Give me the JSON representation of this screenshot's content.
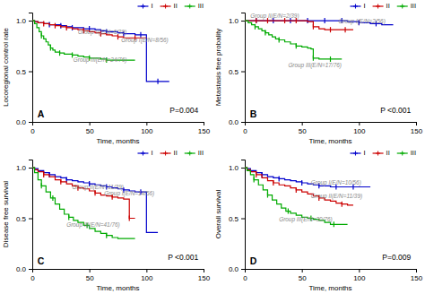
{
  "chart_data": [
    {
      "type": "step",
      "title": "A",
      "subtitle": "P=0.004",
      "xlabel": "Time, months",
      "ylabel": "Locoregional control rate",
      "xlim": [
        0,
        150
      ],
      "ylim": [
        0.0,
        1.08
      ],
      "xticks": [
        0,
        50,
        100,
        150
      ],
      "yticks": [
        {
          "value": 0.0,
          "label": "0.0"
        },
        0.5,
        {
          "value": 1.0,
          "label": "1.0"
        }
      ],
      "grid": false,
      "legend": "upper right",
      "annotations": [
        {
          "text": "Group II(E/N=6/39)",
          "x": 40,
          "y": 0.87,
          "color": "#888888"
        },
        {
          "text": "Group I(E/N=8/56)",
          "x": 78,
          "y": 0.79,
          "color": "#888888"
        },
        {
          "text": "Group III(E/N=24/76)",
          "x": 36,
          "y": 0.595,
          "color": "#888888"
        }
      ],
      "series": [
        {
          "name": "I",
          "color": "#0000cc",
          "x": [
            0,
            2,
            5,
            10,
            15,
            20,
            25,
            30,
            35,
            40,
            45,
            50,
            55,
            60,
            65,
            70,
            75,
            80,
            85,
            90,
            95,
            100,
            105,
            110,
            115,
            120
          ],
          "values": [
            1.0,
            0.99,
            0.98,
            0.97,
            0.96,
            0.96,
            0.95,
            0.94,
            0.93,
            0.93,
            0.92,
            0.92,
            0.91,
            0.9,
            0.89,
            0.89,
            0.88,
            0.87,
            0.87,
            0.86,
            0.86,
            0.4,
            0.4,
            0.4,
            0.4,
            0.4
          ],
          "censors": [
            15,
            25,
            35,
            50,
            65,
            80,
            95,
            110
          ]
        },
        {
          "name": "II",
          "color": "#cc0000",
          "x": [
            0,
            2,
            5,
            10,
            15,
            20,
            25,
            30,
            35,
            40,
            45,
            50,
            55,
            60,
            65,
            70,
            75,
            80,
            85,
            90,
            95,
            100
          ],
          "values": [
            1.0,
            0.99,
            0.98,
            0.97,
            0.96,
            0.95,
            0.94,
            0.93,
            0.92,
            0.91,
            0.9,
            0.89,
            0.88,
            0.87,
            0.86,
            0.85,
            0.84,
            0.83,
            0.83,
            0.83,
            0.83,
            0.83
          ],
          "censors": [
            10,
            20,
            30,
            45,
            60,
            75,
            90
          ]
        },
        {
          "name": "III",
          "color": "#00aa00",
          "x": [
            0,
            2,
            4,
            6,
            8,
            10,
            12,
            14,
            16,
            18,
            20,
            22,
            24,
            26,
            28,
            30,
            35,
            40,
            45,
            50,
            55,
            60,
            65,
            70,
            75,
            80,
            85,
            90
          ],
          "values": [
            1.0,
            0.97,
            0.93,
            0.89,
            0.85,
            0.82,
            0.79,
            0.76,
            0.73,
            0.71,
            0.69,
            0.69,
            0.68,
            0.68,
            0.67,
            0.67,
            0.66,
            0.65,
            0.64,
            0.63,
            0.63,
            0.62,
            0.61,
            0.61,
            0.61,
            0.61,
            0.61,
            0.61
          ],
          "censors": [
            8,
            16,
            24,
            35,
            50,
            65
          ]
        }
      ]
    },
    {
      "type": "step",
      "title": "B",
      "subtitle": "P <0.001",
      "xlabel": "Time, months",
      "ylabel": "Metastasis free probality",
      "xlim": [
        0,
        150
      ],
      "ylim": [
        0.0,
        1.08
      ],
      "xticks": [
        0,
        50,
        100,
        150
      ],
      "yticks": [
        {
          "value": 0.0,
          "label": "0.0"
        },
        0.5,
        {
          "value": 1.0,
          "label": "1.0"
        }
      ],
      "grid": false,
      "legend": "upper right",
      "annotations": [
        {
          "text": "Group II(E/N=2/39)",
          "x": 5,
          "y": 1.03,
          "color": "#888888"
        },
        {
          "text": "Group I(E/N=2/56)",
          "x": 82,
          "y": 0.97,
          "color": "#888888"
        },
        {
          "text": "Group III(E/N=17/76)",
          "x": 38,
          "y": 0.54,
          "color": "#888888"
        }
      ],
      "series": [
        {
          "name": "I",
          "color": "#0000cc",
          "x": [
            0,
            5,
            10,
            20,
            30,
            40,
            50,
            60,
            70,
            80,
            90,
            100,
            110,
            120,
            130
          ],
          "values": [
            1.0,
            1.0,
            1.0,
            1.0,
            1.0,
            1.0,
            1.0,
            1.0,
            1.0,
            1.0,
            0.99,
            0.98,
            0.97,
            0.96,
            0.96
          ],
          "censors": [
            10,
            25,
            40,
            55,
            70,
            85,
            100,
            115
          ]
        },
        {
          "name": "II",
          "color": "#cc0000",
          "x": [
            0,
            5,
            10,
            15,
            20,
            25,
            30,
            35,
            40,
            45,
            50,
            55,
            60,
            65,
            70,
            75,
            80,
            85,
            90,
            95
          ],
          "values": [
            1.0,
            1.0,
            1.0,
            1.0,
            1.0,
            1.0,
            1.0,
            1.0,
            1.0,
            1.0,
            1.0,
            0.99,
            0.94,
            0.92,
            0.91,
            0.91,
            0.91,
            0.91,
            0.91,
            0.91
          ],
          "censors": [
            10,
            20,
            35,
            45,
            60,
            75,
            88
          ]
        },
        {
          "name": "III",
          "color": "#00aa00",
          "x": [
            0,
            3,
            6,
            9,
            12,
            15,
            18,
            21,
            24,
            27,
            30,
            35,
            40,
            45,
            50,
            55,
            58,
            60,
            65,
            70,
            75,
            80,
            85
          ],
          "values": [
            1.0,
            0.98,
            0.96,
            0.94,
            0.92,
            0.9,
            0.88,
            0.86,
            0.84,
            0.82,
            0.81,
            0.79,
            0.77,
            0.75,
            0.74,
            0.73,
            0.72,
            0.63,
            0.62,
            0.62,
            0.62,
            0.62,
            0.62
          ],
          "censors": [
            9,
            18,
            30,
            45,
            60,
            75
          ]
        }
      ]
    },
    {
      "type": "step",
      "title": "C",
      "subtitle": "P <0.001",
      "xlabel": "Time, months",
      "ylabel": "Disease free survival",
      "xlim": [
        0,
        150
      ],
      "ylim": [
        0.0,
        1.08
      ],
      "xticks": [
        0,
        50,
        100,
        150
      ],
      "yticks": [
        {
          "value": 0.0,
          "label": "0.0"
        },
        0.5,
        {
          "value": 1.0,
          "label": "1.0"
        }
      ],
      "grid": false,
      "legend": "upper right",
      "annotations": [
        {
          "text": "Group II(E/N=11/39)",
          "x": 35,
          "y": 0.79,
          "color": "#888888"
        },
        {
          "text": "Group I(E/N=14/56)",
          "x": 63,
          "y": 0.73,
          "color": "#888888"
        },
        {
          "text": "Group III(E/N=41/76)",
          "x": 30,
          "y": 0.42,
          "color": "#888888"
        }
      ],
      "series": [
        {
          "name": "I",
          "color": "#0000cc",
          "x": [
            0,
            2,
            5,
            10,
            15,
            20,
            25,
            30,
            35,
            40,
            45,
            50,
            55,
            60,
            65,
            70,
            75,
            80,
            85,
            90,
            95,
            100,
            105,
            110
          ],
          "values": [
            1.0,
            0.99,
            0.97,
            0.95,
            0.93,
            0.91,
            0.9,
            0.88,
            0.87,
            0.86,
            0.85,
            0.84,
            0.83,
            0.82,
            0.81,
            0.8,
            0.79,
            0.78,
            0.77,
            0.76,
            0.76,
            0.36,
            0.36,
            0.36
          ],
          "censors": [
            15,
            30,
            50,
            65,
            80,
            95
          ]
        },
        {
          "name": "II",
          "color": "#cc0000",
          "x": [
            0,
            2,
            5,
            10,
            15,
            20,
            25,
            30,
            35,
            40,
            45,
            50,
            55,
            60,
            65,
            70,
            75,
            80,
            85,
            90
          ],
          "values": [
            1.0,
            0.98,
            0.96,
            0.93,
            0.91,
            0.88,
            0.86,
            0.84,
            0.82,
            0.8,
            0.79,
            0.77,
            0.75,
            0.73,
            0.72,
            0.71,
            0.7,
            0.69,
            0.5,
            0.5
          ],
          "censors": [
            10,
            25,
            40,
            55,
            70,
            85
          ]
        },
        {
          "name": "III",
          "color": "#00aa00",
          "x": [
            0,
            2,
            5,
            8,
            12,
            16,
            20,
            24,
            28,
            32,
            36,
            40,
            45,
            50,
            55,
            60,
            65,
            70,
            75,
            80,
            85,
            90
          ],
          "values": [
            1.0,
            0.95,
            0.88,
            0.82,
            0.76,
            0.7,
            0.64,
            0.59,
            0.54,
            0.51,
            0.48,
            0.46,
            0.43,
            0.4,
            0.37,
            0.35,
            0.33,
            0.31,
            0.3,
            0.3,
            0.3,
            0.3
          ],
          "censors": [
            8,
            18,
            32,
            48,
            65
          ]
        }
      ]
    },
    {
      "type": "step",
      "title": "D",
      "subtitle": "P=0.009",
      "xlabel": "Time, months",
      "ylabel": "Overall survival",
      "xlim": [
        0,
        150
      ],
      "ylim": [
        0.0,
        1.08
      ],
      "xticks": [
        0,
        50,
        100,
        150
      ],
      "yticks": [
        {
          "value": 0.0,
          "label": "0.0"
        },
        0.5,
        {
          "value": 1.0,
          "label": "1.0"
        }
      ],
      "grid": false,
      "legend": "upper right",
      "annotations": [
        {
          "text": "Group I(E/N=10/56)",
          "x": 58,
          "y": 0.83,
          "color": "#888888"
        },
        {
          "text": "Group II(E/N=11/39)",
          "x": 58,
          "y": 0.7,
          "color": "#888888"
        },
        {
          "text": "Group III(E/N=30/76)",
          "x": 30,
          "y": 0.47,
          "color": "#888888"
        }
      ],
      "series": [
        {
          "name": "I",
          "color": "#0000cc",
          "x": [
            0,
            2,
            5,
            10,
            15,
            20,
            25,
            30,
            35,
            40,
            45,
            50,
            55,
            60,
            65,
            70,
            75,
            80,
            85,
            90,
            95,
            100,
            105,
            110
          ],
          "values": [
            1.0,
            0.99,
            0.97,
            0.95,
            0.93,
            0.91,
            0.9,
            0.89,
            0.88,
            0.87,
            0.86,
            0.85,
            0.84,
            0.83,
            0.82,
            0.82,
            0.81,
            0.81,
            0.81,
            0.81,
            0.81,
            0.81,
            0.81,
            0.81
          ],
          "censors": [
            15,
            30,
            50,
            65,
            80,
            95
          ]
        },
        {
          "name": "II",
          "color": "#cc0000",
          "x": [
            0,
            2,
            5,
            10,
            15,
            20,
            25,
            30,
            35,
            40,
            45,
            50,
            55,
            60,
            65,
            70,
            75,
            80,
            85,
            90,
            95
          ],
          "values": [
            1.0,
            0.98,
            0.96,
            0.93,
            0.9,
            0.87,
            0.85,
            0.83,
            0.82,
            0.8,
            0.78,
            0.76,
            0.74,
            0.72,
            0.7,
            0.68,
            0.67,
            0.65,
            0.64,
            0.63,
            0.63
          ],
          "censors": [
            10,
            25,
            45,
            65,
            85
          ]
        },
        {
          "name": "III",
          "color": "#00aa00",
          "x": [
            0,
            2,
            5,
            8,
            12,
            16,
            20,
            24,
            28,
            32,
            36,
            40,
            45,
            50,
            55,
            60,
            65,
            70,
            75,
            80,
            85,
            90
          ],
          "values": [
            1.0,
            0.97,
            0.93,
            0.88,
            0.83,
            0.78,
            0.73,
            0.68,
            0.64,
            0.6,
            0.57,
            0.55,
            0.53,
            0.51,
            0.5,
            0.49,
            0.48,
            0.46,
            0.44,
            0.44,
            0.44,
            0.44
          ],
          "censors": [
            8,
            20,
            38,
            58,
            78
          ]
        }
      ]
    }
  ]
}
